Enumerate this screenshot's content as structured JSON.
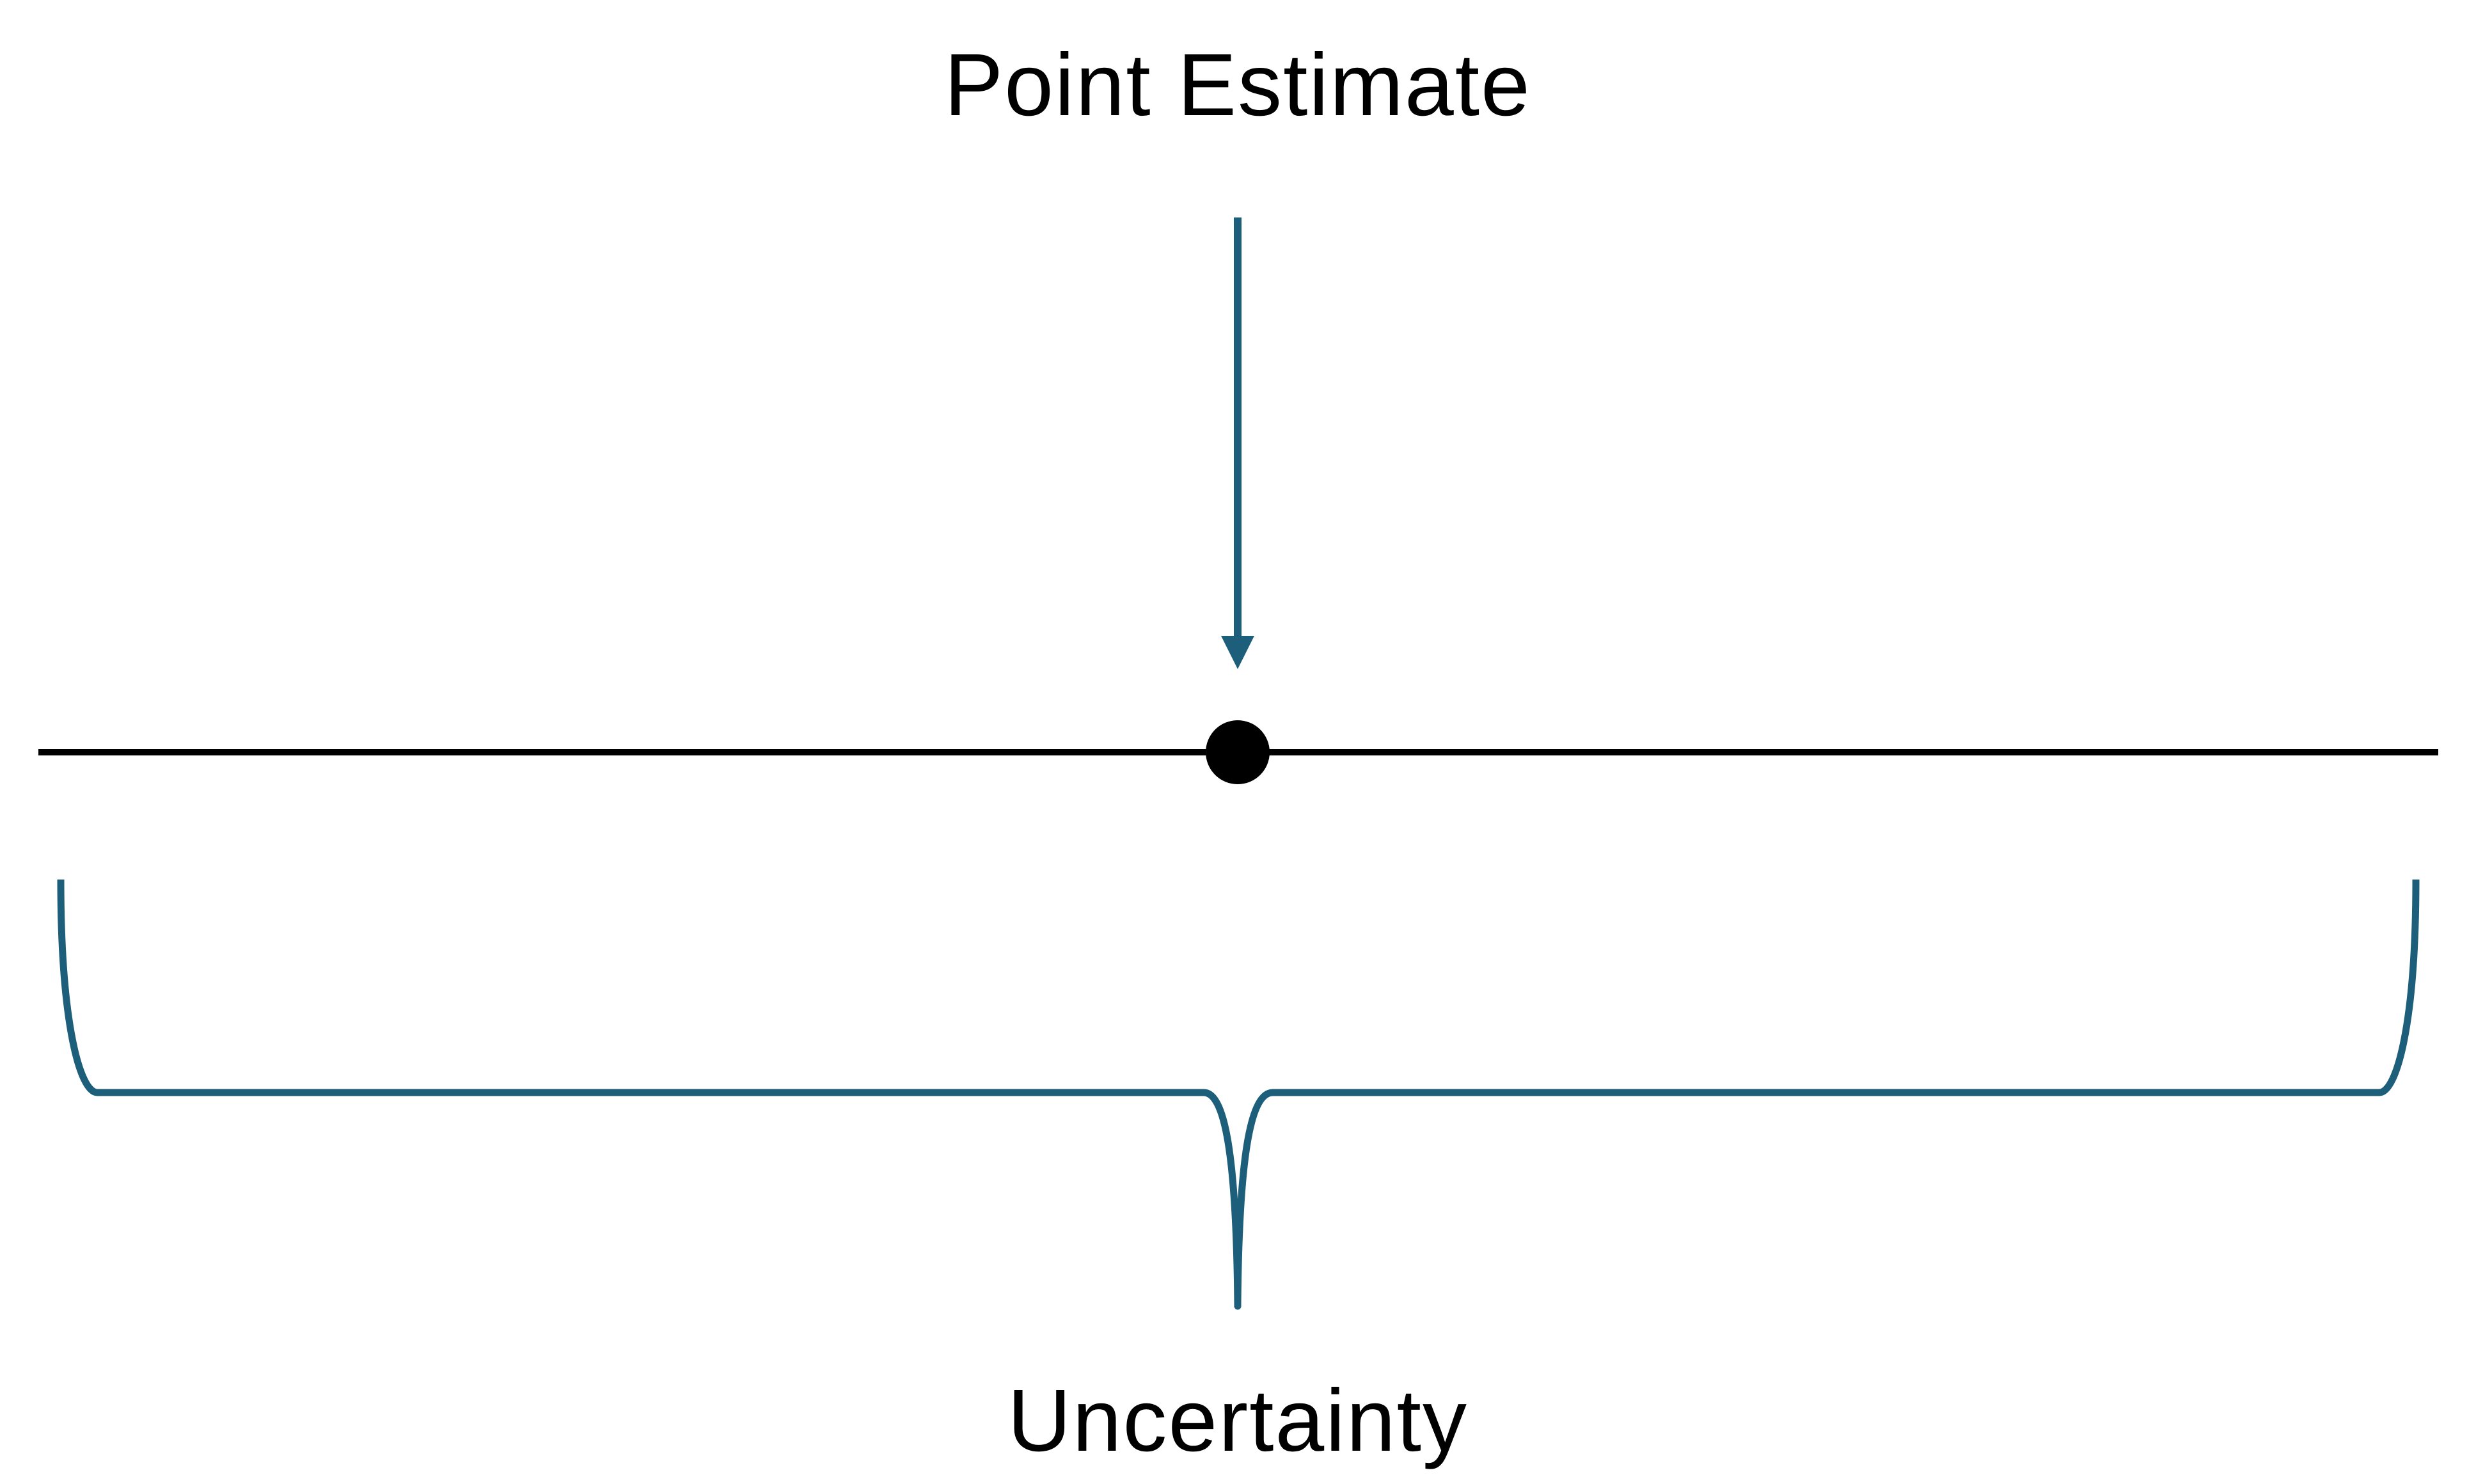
{
  "labels": {
    "top": "Point Estimate",
    "bottom": "Uncertainty"
  },
  "colors": {
    "background": "#ffffff",
    "line": "#000000",
    "accent": "#1d5e7a",
    "point": "#000000",
    "text": "#000000"
  }
}
